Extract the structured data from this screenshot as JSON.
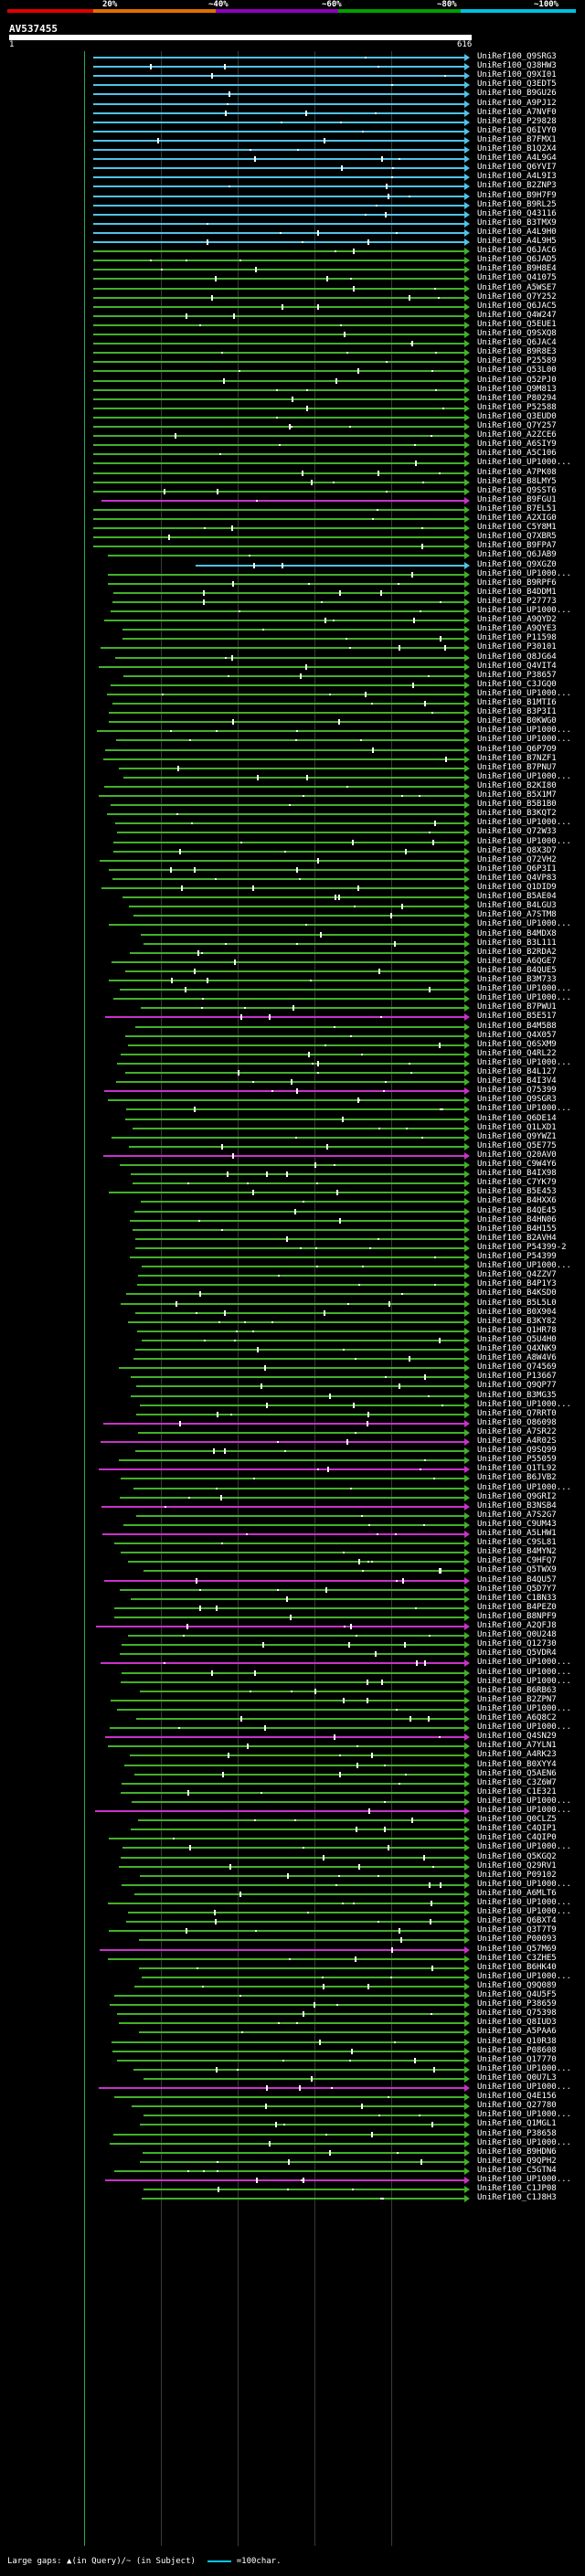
{
  "legend": {
    "segments": [
      {
        "color": "#e00000"
      },
      {
        "color": "#e07000"
      },
      {
        "color": "#9000c0"
      },
      {
        "color": "#00a000"
      },
      {
        "color": "#00c0e0"
      }
    ],
    "labels": [
      "20%",
      "~40%",
      "~60%",
      "~80%",
      "~100%"
    ]
  },
  "query": {
    "name": "AV537455",
    "start": "1",
    "end": "616"
  },
  "colors": {
    "cyan": "#4fc3e8",
    "green": "#43b02a",
    "magenta": "#c832c8"
  },
  "footer": {
    "text": "Large gaps: ▲(in Query)/~ (in Subject)",
    "scale_label": "=100char."
  },
  "hits": [
    "UniRef100_Q9SRG3",
    "UniRef100_Q38HW3",
    "UniRef100_Q9XI01",
    "UniRef100_Q3EDT5",
    "UniRef100_B9GU26",
    "UniRef100_A9PJ12",
    "UniRef100_A7NVF0",
    "UniRef100_P29828",
    "UniRef100_Q6IVY0",
    "UniRef100_B7FMX1",
    "UniRef100_B1Q2X4",
    "UniRef100_A4L9G4",
    "UniRef100_Q6YVI7",
    "UniRef100_A4L9I3",
    "UniRef100_B2ZNP3",
    "UniRef100_B9H7F9",
    "UniRef100_B9RL25",
    "UniRef100_Q43116",
    "UniRef100_B3TMX9",
    "UniRef100_A4L9H0",
    "UniRef100_A4L9H5",
    "UniRef100_Q6JAC6",
    "UniRef100_Q6JAD5",
    "UniRef100_B9H8E4",
    "UniRef100_Q41075",
    "UniRef100_A5WSE7",
    "UniRef100_Q7Y252",
    "UniRef100_Q6JAC5",
    "UniRef100_Q4W247",
    "UniRef100_Q5EUE1",
    "UniRef100_Q9SXQ8",
    "UniRef100_Q6JAC4",
    "UniRef100_B9R8E3",
    "UniRef100_P25589",
    "UniRef100_Q53L00",
    "UniRef100_Q52PJ0",
    "UniRef100_Q9M813",
    "UniRef100_P80294",
    "UniRef100_P52588",
    "UniRef100_Q3EUD0",
    "UniRef100_Q7Y257",
    "UniRef100_A2ZCE6",
    "UniRef100_A6SIY9",
    "UniRef100_A5C106",
    "UniRef100_UP1000...",
    "UniRef100_A7PK08",
    "UniRef100_B8LMY5",
    "UniRef100_Q9SST6",
    "UniRef100_B9FGU1",
    "UniRef100_B7EL51",
    "UniRef100_A2XIG0",
    "UniRef100_C5Y8M1",
    "UniRef100_Q7XBR5",
    "UniRef100_B9FPA7",
    "UniRef100_Q6JAB9",
    "UniRef100_Q9XGZ0",
    "UniRef100_UP1000...",
    "UniRef100_B9RPF6",
    "UniRef100_B4DDM1",
    "UniRef100_P27773",
    "UniRef100_UP1000...",
    "UniRef100_A9QYD2",
    "UniRef100_A9QYE3",
    "UniRef100_P11598",
    "UniRef100_P30101",
    "UniRef100_Q8JG64",
    "UniRef100_Q4VIT4",
    "UniRef100_P38657",
    "UniRef100_C3JGQ0",
    "UniRef100_UP1000...",
    "UniRef100_B1MTI6",
    "UniRef100_B3P3I1",
    "UniRef100_B0KWG0",
    "UniRef100_UP1000...",
    "UniRef100_UP1000...",
    "UniRef100_Q6P7O9",
    "UniRef100_B7NZF1",
    "UniRef100_B7PNU7",
    "UniRef100_UP1000...",
    "UniRef100_B2KI80",
    "UniRef100_B5X1M7",
    "UniRef100_B5B1B0",
    "UniRef100_B3KQT2",
    "UniRef100_UP1000...",
    "UniRef100_Q72W33",
    "UniRef100_UP1000...",
    "UniRef100_Q8X3D7",
    "UniRef100_Q72VH2",
    "UniRef100_Q6P3I1",
    "UniRef100_Q4VP83",
    "UniRef100_Q1DID9",
    "UniRef100_B5AE04",
    "UniRef100_B4LGU3",
    "UniRef100_A7STM8",
    "UniRef100_UP1000...",
    "UniRef100_B4MDX8",
    "UniRef100_B3L111",
    "UniRef100_B2RDA2",
    "UniRef100_A6QGE7",
    "UniRef100_B4QUE5",
    "UniRef100_B3M733",
    "UniRef100_UP1000...",
    "UniRef100_UP1000...",
    "UniRef100_B7PWU1",
    "UniRef100_B5E517",
    "UniRef100_B4M5B8",
    "UniRef100_Q4X057",
    "UniRef100_Q6SXM9",
    "UniRef100_Q4RL22",
    "UniRef100_UP1000...",
    "UniRef100_B4L127",
    "UniRef100_B4I3V4",
    "UniRef100_Q75399",
    "UniRef100_Q9SGR3",
    "UniRef100_UP1000...",
    "UniRef100_Q6DE14",
    "UniRef100_Q1LXD1",
    "UniRef100_Q9YWZ1",
    "UniRef100_Q5E775",
    "UniRef100_Q20AV0",
    "UniRef100_C9W4Y6",
    "UniRef100_B4IX98",
    "UniRef100_C7YK79",
    "UniRef100_B5E453",
    "UniRef100_B4HXX6",
    "UniRef100_B4QE45",
    "UniRef100_B4HN06",
    "UniRef100_B4H155",
    "UniRef100_B2AVH4",
    "UniRef100_P54399-2",
    "UniRef100_P54399",
    "UniRef100_UP1000...",
    "UniRef100_Q4ZZV7",
    "UniRef100_B4P1Y3",
    "UniRef100_B4KSD0",
    "UniRef100_B5L5L0",
    "UniRef100_B0X904",
    "UniRef100_B3KY82",
    "UniRef100_Q1HR78",
    "UniRef100_Q5U4H0",
    "UniRef100_Q4XNK9",
    "UniRef100_A8W4V6",
    "UniRef100_Q74569",
    "UniRef100_P13667",
    "UniRef100_Q9QP77",
    "UniRef100_B3MG35",
    "UniRef100_UP1000...",
    "UniRef100_Q7RRT0",
    "UniRef100_O86098",
    "UniRef100_A7SR22",
    "UniRef100_A4R02S",
    "UniRef100_Q9SQ99",
    "UniRef100_P55059",
    "UniRef100_Q1TL92",
    "UniRef100_B6JVB2",
    "UniRef100_UP1000...",
    "UniRef100_Q9GRI2",
    "UniRef100_B3NSB4",
    "UniRef100_A7S2G7",
    "UniRef100_C9UM43",
    "UniRef100_A5LHW1",
    "UniRef100_C9SL81",
    "UniRef100_B4MYN2",
    "UniRef100_C9HFQ7",
    "UniRef100_Q5TWX9",
    "UniRef100_B4QU57",
    "UniRef100_Q5D7Y7",
    "UniRef100_C1BN33",
    "UniRef100_B4PEZ0",
    "UniRef100_B8NPF9",
    "UniRef100_A2QFJ8",
    "UniRef100_Q0U248",
    "UniRef100_Q12730",
    "UniRef100_Q5VDR4",
    "UniRef100_UP1000...",
    "UniRef100_UP1000...",
    "UniRef100_UP1000...",
    "UniRef100_B6RB63",
    "UniRef100_B2ZPN7",
    "UniRef100_UP1000...",
    "UniRef100_A6Q8C2",
    "UniRef100_UP1000...",
    "UniRef100_Q4SN29",
    "UniRef100_A7YLN1",
    "UniRef100_A4RK23",
    "UniRef100_B0XYY4",
    "UniRef100_Q5AEN6",
    "UniRef100_C3Z6W7",
    "UniRef100_C1E321",
    "UniRef100_UP1000...",
    "UniRef100_UP1000...",
    "UniRef100_Q0CLZ5",
    "UniRef100_C4QIP1",
    "UniRef100_C4QIP0",
    "UniRef100_UP1000...",
    "UniRef100_Q5KGQ2",
    "UniRef100_Q29RV1",
    "UniRef100_P09102",
    "UniRef100_UP1000...",
    "UniRef100_A6MLT6",
    "UniRef100_UP1000...",
    "UniRef100_UP1000...",
    "UniRef100_Q6BXT4",
    "UniRef100_Q3T7T9",
    "UniRef100_P00093",
    "UniRef100_Q57M69",
    "UniRef100_C3ZHE5",
    "UniRef100_B6HK40",
    "UniRef100_UP1000...",
    "UniRef100_Q9Q089",
    "UniRef100_Q4U5F5",
    "UniRef100_P38659",
    "UniRef100_Q75398",
    "UniRef100_Q8IUD3",
    "UniRef100_A5PAA6",
    "UniRef100_Q10R38",
    "UniRef100_P08608",
    "UniRef100_Q17770",
    "UniRef100_UP1000...",
    "UniRef100_Q0U7L3",
    "UniRef100_UP1000...",
    "UniRef100_Q4E156",
    "UniRef100_Q27780",
    "UniRef100_UP1000...",
    "UniRef100_Q1MGL1",
    "UniRef100_P38658",
    "UniRef100_UP1000...",
    "UniRef100_B9HDN6",
    "UniRef100_Q9QPH2",
    "UniRef100_C5GTN4",
    "UniRef100_UP1000...",
    "UniRef100_C1JP08",
    "UniRef100_C1J8H3"
  ]
}
